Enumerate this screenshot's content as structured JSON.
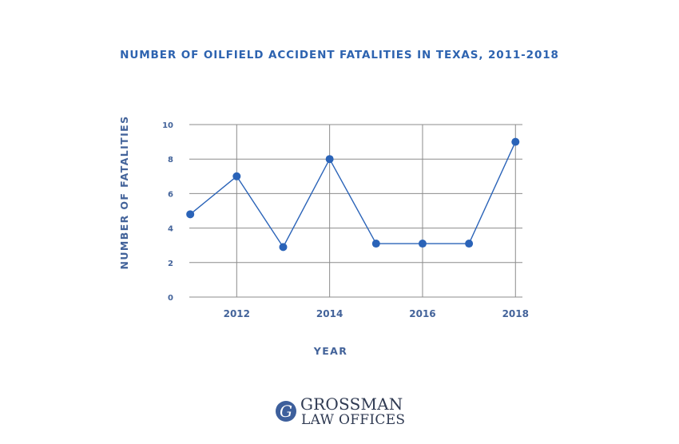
{
  "colors": {
    "title": "#2d63b0",
    "axis_text": "#43639a",
    "grid": "#8c8c8c",
    "series": "#2a63b8",
    "brand": "#2f3a52",
    "brand_logo": "#3d5f9c"
  },
  "brand": {
    "logo_letter": "G",
    "line1": "GROSSMAN",
    "line2": "LAW OFFICES"
  },
  "chart_data": {
    "type": "line",
    "title": "NUMBER OF OILFIELD ACCIDENT FATALITIES IN TEXAS, 2011-2018",
    "xlabel": "YEAR",
    "ylabel": "NUMBER OF FATALITIES",
    "x": [
      2011,
      2012,
      2013,
      2014,
      2015,
      2016,
      2017,
      2018
    ],
    "xlim": [
      2010.98,
      2018.15
    ],
    "x_ticks": [
      "2012",
      "2014",
      "2016",
      "2018"
    ],
    "x_tick_values": [
      2012,
      2014,
      2016,
      2018
    ],
    "ylim": [
      0,
      10
    ],
    "y_ticks": [
      "0",
      "2",
      "4",
      "6",
      "8",
      "10"
    ],
    "y_tick_values": [
      0,
      2,
      4,
      6,
      8,
      10
    ],
    "grid": true,
    "legend": "none",
    "series": [
      {
        "values": [
          4.8,
          7,
          2.9,
          8,
          3.1,
          3.1,
          3.1,
          9
        ]
      }
    ]
  }
}
